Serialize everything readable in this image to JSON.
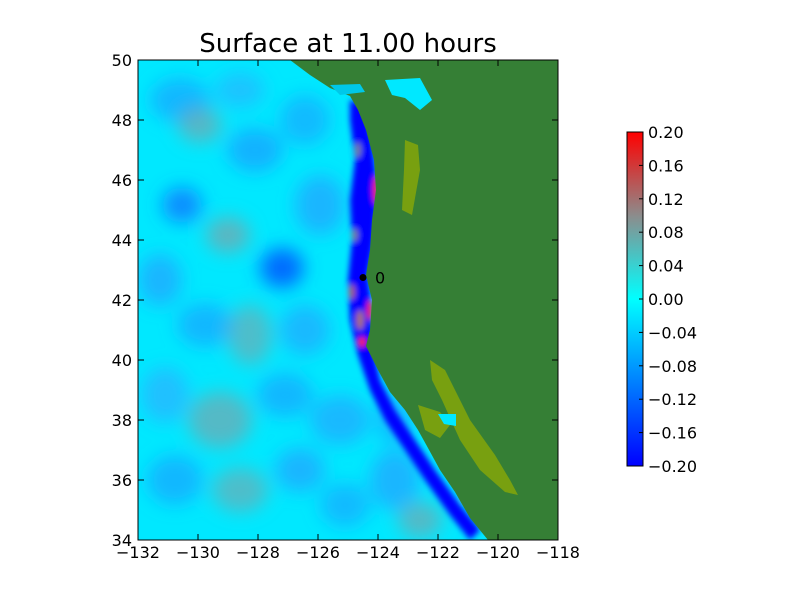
{
  "chart_data": {
    "type": "heatmap",
    "title": "Surface at 11.00 hours",
    "xlabel": "",
    "ylabel": "",
    "xlim": [
      -132,
      -118
    ],
    "ylim": [
      34,
      50
    ],
    "x_ticks": [
      "−132",
      "−130",
      "−128",
      "−126",
      "−124",
      "−122",
      "−120",
      "−118"
    ],
    "y_ticks": [
      "34",
      "36",
      "38",
      "40",
      "42",
      "44",
      "46",
      "48",
      "50"
    ],
    "x_tick_values": [
      -132,
      -130,
      -128,
      -126,
      -124,
      -122,
      -120,
      -118
    ],
    "y_tick_values": [
      34,
      36,
      38,
      40,
      42,
      44,
      46,
      48,
      50
    ],
    "grid": false,
    "colorbar": {
      "placement": "right",
      "min": -0.2,
      "max": 0.2,
      "tick_values": [
        0.2,
        0.16,
        0.12,
        0.08,
        0.04,
        0.0,
        -0.04,
        -0.08,
        -0.12,
        -0.16,
        -0.2
      ],
      "tick_labels": [
        "0.20",
        "0.16",
        "0.12",
        "0.08",
        "0.04",
        "0.00",
        "−0.04",
        "−0.08",
        "−0.12",
        "−0.16",
        "−0.20"
      ],
      "colors": [
        "#0000ff",
        "#00e5ff",
        "#8c8c8c",
        "#ff0000"
      ]
    },
    "land_color": "#357f35",
    "lowland_color": "#78a010",
    "gauge": {
      "x": -124.5,
      "y": 42.75,
      "label": "0"
    }
  }
}
